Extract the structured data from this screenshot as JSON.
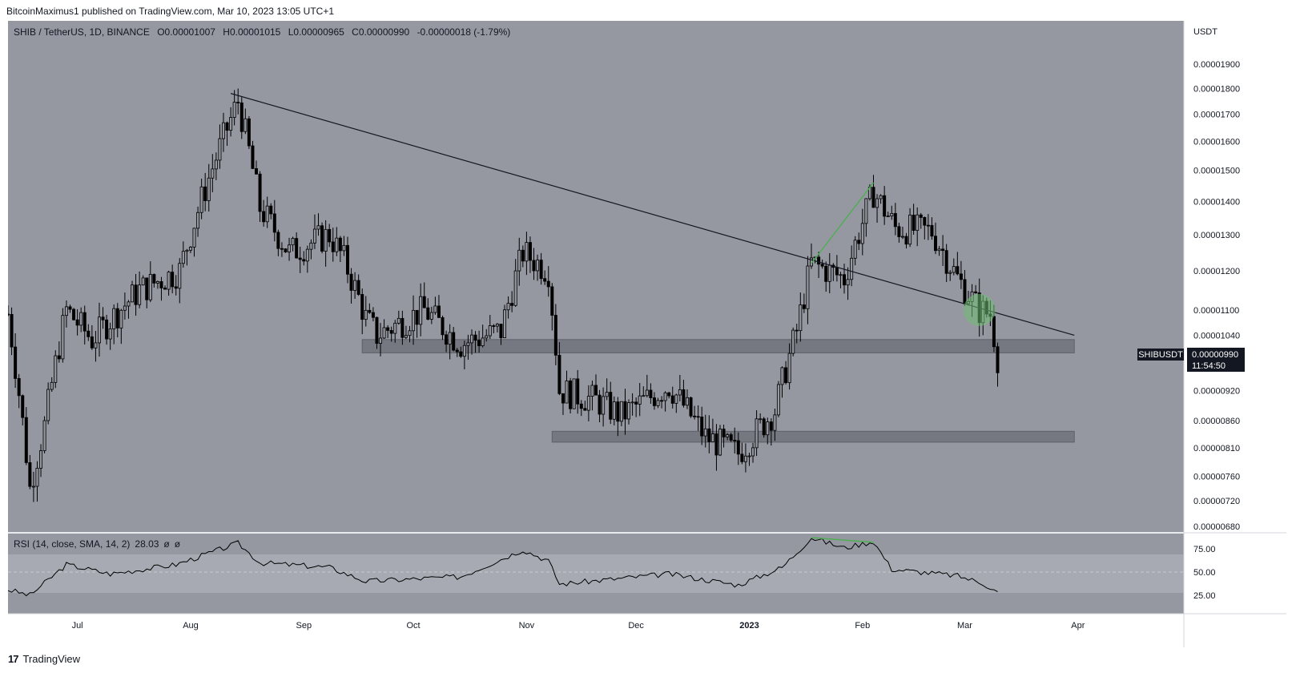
{
  "header": {
    "published": "BitcoinMaximus1 published on TradingView.com, Mar 10, 2023 13:05 UTC+1"
  },
  "legend": {
    "symbol": "SHIB / TetherUS, 1D, BINANCE",
    "o_label": "O",
    "o": "0.00001007",
    "h_label": "H",
    "h": "0.00001015",
    "l_label": "L",
    "l": "0.00000965",
    "c_label": "C",
    "c": "0.00000990",
    "change": "-0.00000018 (-1.79%)"
  },
  "price_axis": {
    "unit": "USDT",
    "ticks": [
      "0.00001900",
      "0.00001800",
      "0.00001700",
      "0.00001600",
      "0.00001500",
      "0.00001400",
      "0.00001300",
      "0.00001200",
      "0.00001100",
      "0.00001040",
      "0.00000920",
      "0.00000860",
      "0.00000810",
      "0.00000760",
      "0.00000720",
      "0.00000680"
    ]
  },
  "last_price": {
    "symbol": "SHIBUSDT",
    "price": "0.00000990",
    "countdown": "11:54:50"
  },
  "rsi": {
    "label": "RSI (14, close, SMA, 14, 2)",
    "value": "28.03",
    "extra1": "ø",
    "extra2": "ø",
    "ticks": [
      "75.00",
      "50.00",
      "25.00"
    ]
  },
  "time_axis": [
    "Jul",
    "Aug",
    "Sep",
    "Oct",
    "Nov",
    "Dec",
    "2023",
    "Feb",
    "Mar",
    "Apr"
  ],
  "footer": {
    "brand": "TradingView"
  },
  "colors": {
    "pane_bg": "#9598a1",
    "candle": "#000000",
    "trendline": "#131722",
    "divergence": "#4caf50",
    "zone": "#6b6e76"
  },
  "chart_data": {
    "type": "candlestick",
    "symbol": "SHIB / TetherUS",
    "interval": "1D",
    "y_scale": "log",
    "anchors": [
      {
        "date": "2023-06-12",
        "v": 1.09e-05
      },
      {
        "date": "2022-06-18",
        "v": 7.4e-06
      },
      {
        "date": "2022-06-22",
        "v": 8.5e-06
      },
      {
        "date": "2022-06-28",
        "v": 1.1e-05
      },
      {
        "date": "2022-07-05",
        "v": 1.03e-05
      },
      {
        "date": "2022-07-18",
        "v": 1.15e-05
      },
      {
        "date": "2022-07-29",
        "v": 1.2e-05
      },
      {
        "date": "2022-08-14",
        "v": 1.75e-05
      },
      {
        "date": "2022-08-20",
        "v": 1.38e-05
      },
      {
        "date": "2022-08-28",
        "v": 1.25e-05
      },
      {
        "date": "2022-09-08",
        "v": 1.3e-05
      },
      {
        "date": "2022-09-12",
        "v": 1.23e-05
      },
      {
        "date": "2022-09-18",
        "v": 1.08e-05
      },
      {
        "date": "2022-09-21",
        "v": 1.04e-05
      },
      {
        "date": "2022-10-04",
        "v": 1.1e-05
      },
      {
        "date": "2022-10-14",
        "v": 1.02e-05
      },
      {
        "date": "2022-10-25",
        "v": 1.05e-05
      },
      {
        "date": "2022-10-31",
        "v": 1.25e-05
      },
      {
        "date": "2022-11-07",
        "v": 1.2e-05
      },
      {
        "date": "2022-11-10",
        "v": 9.2e-06
      },
      {
        "date": "2022-11-20",
        "v": 9e-06
      },
      {
        "date": "2022-11-27",
        "v": 8.7e-06
      },
      {
        "date": "2022-12-10",
        "v": 9.3e-06
      },
      {
        "date": "2022-12-20",
        "v": 8.3e-06
      },
      {
        "date": "2022-12-29",
        "v": 8e-06
      },
      {
        "date": "2023-01-08",
        "v": 8.8e-06
      },
      {
        "date": "2023-01-14",
        "v": 1.05e-05
      },
      {
        "date": "2023-01-18",
        "v": 1.22e-05
      },
      {
        "date": "2023-01-27",
        "v": 1.18e-05
      },
      {
        "date": "2023-02-04",
        "v": 1.43e-05
      },
      {
        "date": "2023-02-10",
        "v": 1.32e-05
      },
      {
        "date": "2023-02-20",
        "v": 1.31e-05
      },
      {
        "date": "2023-02-27",
        "v": 1.18e-05
      },
      {
        "date": "2023-03-05",
        "v": 1.1e-05
      },
      {
        "date": "2023-03-08",
        "v": 1.09e-05
      },
      {
        "date": "2023-03-10",
        "v": 9.9e-06
      }
    ],
    "trendline": [
      {
        "date": "2022-08-12",
        "v": 1.78e-05
      },
      {
        "date": "2023-03-31",
        "v": 1.04e-05
      }
    ],
    "divergence_price": [
      {
        "date": "2023-01-18",
        "v": 1.22e-05
      },
      {
        "date": "2023-02-04",
        "v": 1.46e-05
      }
    ],
    "zones": [
      {
        "from": "2022-09-17",
        "to": "2023-03-31",
        "low": 1e-05,
        "high": 1.03e-05
      },
      {
        "from": "2022-11-08",
        "to": "2023-03-31",
        "low": 8.2e-06,
        "high": 8.4e-06
      }
    ],
    "marker": {
      "date": "2023-03-05",
      "v": 1.1e-05
    },
    "rsi_anchors": [
      {
        "date": "2023-06-12",
        "v": 31
      },
      {
        "date": "2022-06-18",
        "v": 25
      },
      {
        "date": "2022-06-28",
        "v": 58
      },
      {
        "date": "2022-07-10",
        "v": 48
      },
      {
        "date": "2022-07-28",
        "v": 58
      },
      {
        "date": "2022-08-14",
        "v": 81
      },
      {
        "date": "2022-08-20",
        "v": 60
      },
      {
        "date": "2022-09-08",
        "v": 55
      },
      {
        "date": "2022-09-18",
        "v": 40
      },
      {
        "date": "2022-10-14",
        "v": 45
      },
      {
        "date": "2022-10-31",
        "v": 74
      },
      {
        "date": "2022-11-07",
        "v": 62
      },
      {
        "date": "2022-11-10",
        "v": 37
      },
      {
        "date": "2022-12-10",
        "v": 48
      },
      {
        "date": "2022-12-29",
        "v": 36
      },
      {
        "date": "2023-01-10",
        "v": 55
      },
      {
        "date": "2023-01-18",
        "v": 87
      },
      {
        "date": "2023-01-27",
        "v": 76
      },
      {
        "date": "2023-02-04",
        "v": 83
      },
      {
        "date": "2023-02-09",
        "v": 53
      },
      {
        "date": "2023-02-27",
        "v": 46
      },
      {
        "date": "2023-03-06",
        "v": 38
      },
      {
        "date": "2023-03-10",
        "v": 28
      }
    ],
    "rsi_divergence": [
      {
        "date": "2023-01-18",
        "v": 87
      },
      {
        "date": "2023-02-04",
        "v": 82
      }
    ],
    "rsi_bands": {
      "upper": 70,
      "middle": 50,
      "lower": 30
    }
  }
}
